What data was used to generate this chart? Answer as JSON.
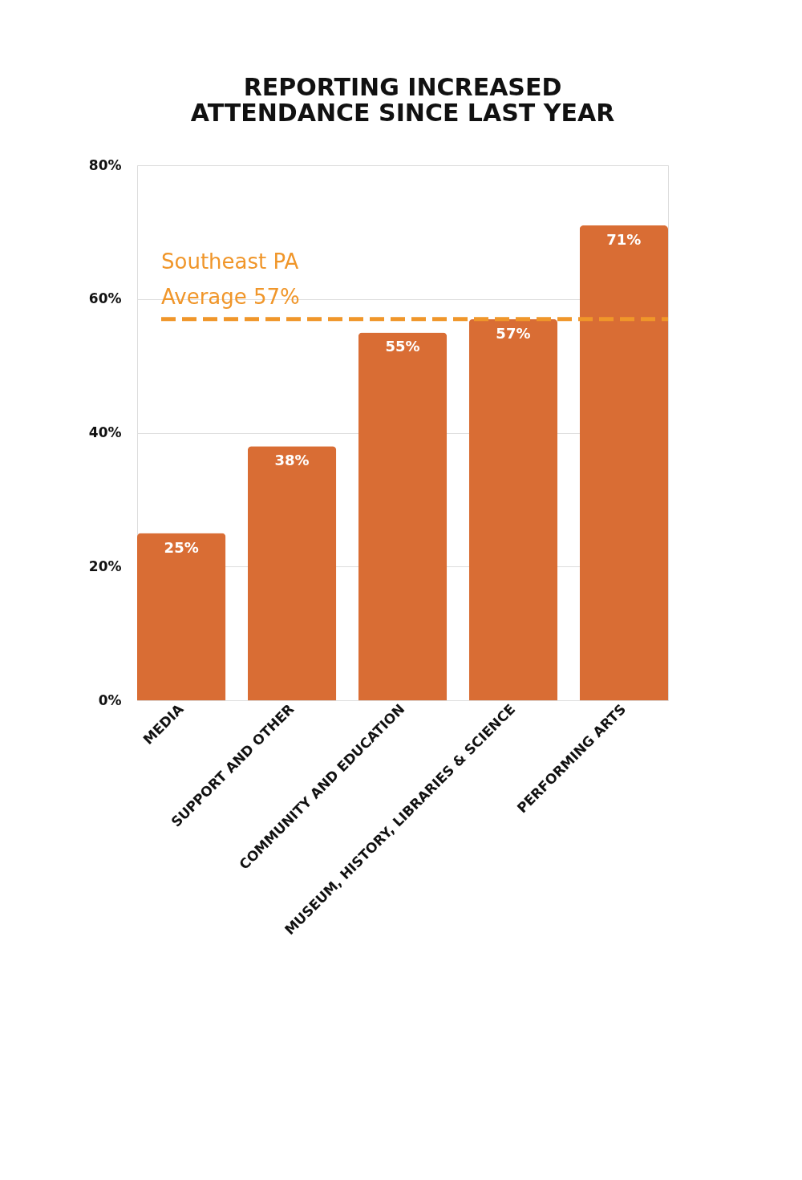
{
  "chart_data": {
    "type": "bar",
    "title": [
      "REPORTING INCREASED",
      "ATTENDANCE SINCE LAST YEAR"
    ],
    "categories": [
      "MEDIA",
      "SUPPORT AND OTHER",
      "COMMUNITY AND EDUCATION",
      "MUSEUM, HISTORY, LIBRARIES & SCIENCE",
      "PERFORMING ARTS"
    ],
    "values": [
      25,
      38,
      55,
      57,
      71
    ],
    "value_labels": [
      "25%",
      "38%",
      "55%",
      "57%",
      "71%"
    ],
    "color": "#d96d34",
    "ylim": [
      0,
      80
    ],
    "yticks": [
      {
        "value": 0,
        "label": "0%"
      },
      {
        "value": 20,
        "label": "20%"
      },
      {
        "value": 40,
        "label": "40%"
      },
      {
        "value": 60,
        "label": "60%"
      },
      {
        "value": 80,
        "label": "80%"
      }
    ],
    "grid": "y",
    "ref_lines": [
      {
        "axis": "y",
        "value": 57,
        "label": "Southeast PA\nAverage 57%",
        "color": "#f0962a",
        "line_style": "dashed"
      }
    ]
  }
}
